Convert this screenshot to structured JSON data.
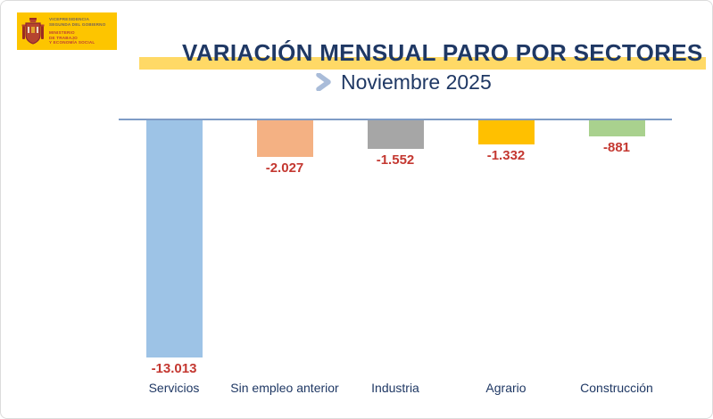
{
  "logo": {
    "department_lines": [
      "VICEPRESIDENCIA",
      "SEGUNDA DEL GOBIERNO"
    ],
    "ministry_lines": [
      "MINISTERIO",
      "DE TRABAJO",
      "Y ECONOMÍA SOCIAL"
    ],
    "background_color": "#FDC500",
    "ministry_text_color": "#BE3F34",
    "department_text_color": "#756457"
  },
  "header": {
    "title": "VARIACIÓN MENSUAL PARO POR SECTORES",
    "subtitle": "Noviembre 2025",
    "title_color": "#1F3864",
    "highlight_bar_color": "#FFD966",
    "chevron_color": "#A9BCD9"
  },
  "chart_data": {
    "type": "bar",
    "title": "VARIACIÓN MENSUAL PARO POR SECTORES",
    "subtitle": "Noviembre 2025",
    "categories": [
      "Servicios",
      "Sin empleo anterior",
      "Industria",
      "Agrario",
      "Construcción"
    ],
    "values": [
      -13013,
      -2027,
      -1552,
      -1332,
      -881
    ],
    "value_labels": [
      "-13.013",
      "-2.027",
      "-1.552",
      "-1.332",
      "-881"
    ],
    "bar_colors": [
      "#9DC3E6",
      "#F4B183",
      "#A6A6A6",
      "#FFC000",
      "#A9D18E"
    ],
    "ylim": [
      -13013,
      0
    ],
    "xlabel": "",
    "ylabel": "",
    "grid": false,
    "legend": false,
    "orientation": "vertical-negative",
    "value_label_color": "#C43831",
    "category_label_color": "#1F3864",
    "baseline_color": "#7F9CC6"
  }
}
